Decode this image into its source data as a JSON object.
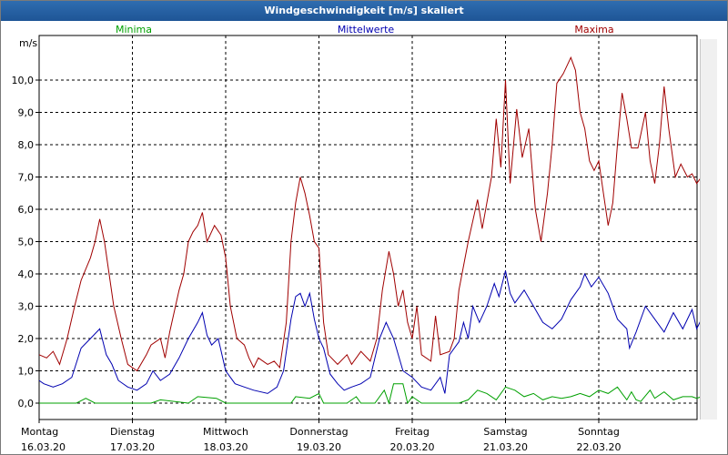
{
  "window": {
    "title": "Windgeschwindigkeit [m/s] skaliert"
  },
  "colors": {
    "minima": "#00a000",
    "mittelwerte": "#0000b0",
    "maxima": "#a00000",
    "grid": "#000000",
    "titlebar": "#2a63a6"
  },
  "chart_data": {
    "type": "line",
    "title": "Windgeschwindigkeit [m/s] skaliert",
    "ylabel": "m/s",
    "xlabel": "",
    "ylim": [
      -0.3,
      11.2
    ],
    "yticks": [
      "0,0",
      "1,0",
      "2,0",
      "3,0",
      "4,0",
      "5,0",
      "6,0",
      "7,0",
      "8,0",
      "9,0",
      "10,0"
    ],
    "xticks": [
      {
        "day": "Montag",
        "date": "16.03.20"
      },
      {
        "day": "Dienstag",
        "date": "17.03.20"
      },
      {
        "day": "Mittwoch",
        "date": "18.03.20"
      },
      {
        "day": "Donnerstag",
        "date": "19.03.20"
      },
      {
        "day": "Freitag",
        "date": "20.03.20"
      },
      {
        "day": "Samstag",
        "date": "21.03.20"
      },
      {
        "day": "Sonntag",
        "date": "22.03.20"
      }
    ],
    "xrange_days": [
      0,
      7.1
    ],
    "grid": true,
    "legend": "top",
    "series": [
      {
        "name": "Minima",
        "color": "#00a000",
        "points": [
          [
            0,
            0
          ],
          [
            0.4,
            0
          ],
          [
            0.5,
            0.15
          ],
          [
            0.6,
            0
          ],
          [
            1.2,
            0
          ],
          [
            1.3,
            0.1
          ],
          [
            1.6,
            0
          ],
          [
            1.7,
            0.2
          ],
          [
            1.9,
            0.15
          ],
          [
            2.0,
            0
          ],
          [
            2.7,
            0
          ],
          [
            2.75,
            0.2
          ],
          [
            2.9,
            0.15
          ],
          [
            3.0,
            0.3
          ],
          [
            3.05,
            0
          ],
          [
            3.3,
            0
          ],
          [
            3.4,
            0.2
          ],
          [
            3.45,
            0
          ],
          [
            3.6,
            0
          ],
          [
            3.7,
            0.4
          ],
          [
            3.75,
            0
          ],
          [
            3.8,
            0.6
          ],
          [
            3.9,
            0.6
          ],
          [
            3.95,
            0
          ],
          [
            4.0,
            0.2
          ],
          [
            4.1,
            0
          ],
          [
            4.5,
            0
          ],
          [
            4.6,
            0.1
          ],
          [
            4.7,
            0.4
          ],
          [
            4.8,
            0.3
          ],
          [
            4.9,
            0.1
          ],
          [
            5.0,
            0.5
          ],
          [
            5.1,
            0.4
          ],
          [
            5.2,
            0.2
          ],
          [
            5.3,
            0.3
          ],
          [
            5.4,
            0.1
          ],
          [
            5.5,
            0.2
          ],
          [
            5.6,
            0.15
          ],
          [
            5.7,
            0.2
          ],
          [
            5.8,
            0.3
          ],
          [
            5.9,
            0.2
          ],
          [
            6.0,
            0.4
          ],
          [
            6.1,
            0.3
          ],
          [
            6.2,
            0.5
          ],
          [
            6.25,
            0.3
          ],
          [
            6.3,
            0.1
          ],
          [
            6.35,
            0.35
          ],
          [
            6.4,
            0.1
          ],
          [
            6.45,
            0.05
          ],
          [
            6.55,
            0.4
          ],
          [
            6.6,
            0.15
          ],
          [
            6.7,
            0.35
          ],
          [
            6.8,
            0.1
          ],
          [
            6.9,
            0.2
          ],
          [
            7.0,
            0.2
          ],
          [
            7.05,
            0.15
          ],
          [
            7.1,
            0.2
          ]
        ]
      },
      {
        "name": "Mittelwerte",
        "color": "#0000b0",
        "points": [
          [
            0,
            0.7
          ],
          [
            0.05,
            0.6
          ],
          [
            0.15,
            0.5
          ],
          [
            0.25,
            0.6
          ],
          [
            0.35,
            0.8
          ],
          [
            0.45,
            1.7
          ],
          [
            0.55,
            2.0
          ],
          [
            0.65,
            2.3
          ],
          [
            0.72,
            1.5
          ],
          [
            0.78,
            1.2
          ],
          [
            0.85,
            0.7
          ],
          [
            0.95,
            0.5
          ],
          [
            1.05,
            0.4
          ],
          [
            1.15,
            0.6
          ],
          [
            1.22,
            1.0
          ],
          [
            1.3,
            0.7
          ],
          [
            1.4,
            0.9
          ],
          [
            1.5,
            1.4
          ],
          [
            1.6,
            2.0
          ],
          [
            1.7,
            2.5
          ],
          [
            1.75,
            2.8
          ],
          [
            1.8,
            2.1
          ],
          [
            1.85,
            1.8
          ],
          [
            1.92,
            2.0
          ],
          [
            2.0,
            1.0
          ],
          [
            2.1,
            0.6
          ],
          [
            2.2,
            0.5
          ],
          [
            2.3,
            0.4
          ],
          [
            2.45,
            0.3
          ],
          [
            2.55,
            0.5
          ],
          [
            2.62,
            1.0
          ],
          [
            2.7,
            2.6
          ],
          [
            2.75,
            3.3
          ],
          [
            2.8,
            3.4
          ],
          [
            2.85,
            3.0
          ],
          [
            2.9,
            3.4
          ],
          [
            2.95,
            2.6
          ],
          [
            3.0,
            2.0
          ],
          [
            3.05,
            1.7
          ],
          [
            3.12,
            0.9
          ],
          [
            3.2,
            0.6
          ],
          [
            3.27,
            0.4
          ],
          [
            3.35,
            0.5
          ],
          [
            3.45,
            0.6
          ],
          [
            3.55,
            0.8
          ],
          [
            3.65,
            2.0
          ],
          [
            3.72,
            2.5
          ],
          [
            3.8,
            2.0
          ],
          [
            3.9,
            1.0
          ],
          [
            4.0,
            0.8
          ],
          [
            4.1,
            0.5
          ],
          [
            4.2,
            0.4
          ],
          [
            4.3,
            0.8
          ],
          [
            4.35,
            0.3
          ],
          [
            4.4,
            1.5
          ],
          [
            4.5,
            1.9
          ],
          [
            4.55,
            2.5
          ],
          [
            4.6,
            2.0
          ],
          [
            4.65,
            3.0
          ],
          [
            4.72,
            2.5
          ],
          [
            4.8,
            3.0
          ],
          [
            4.88,
            3.7
          ],
          [
            4.93,
            3.3
          ],
          [
            5.0,
            4.1
          ],
          [
            5.05,
            3.4
          ],
          [
            5.1,
            3.1
          ],
          [
            5.2,
            3.5
          ],
          [
            5.3,
            3.0
          ],
          [
            5.4,
            2.5
          ],
          [
            5.5,
            2.3
          ],
          [
            5.6,
            2.6
          ],
          [
            5.7,
            3.2
          ],
          [
            5.8,
            3.6
          ],
          [
            5.85,
            4.0
          ],
          [
            5.92,
            3.6
          ],
          [
            6.0,
            3.9
          ],
          [
            6.1,
            3.4
          ],
          [
            6.2,
            2.6
          ],
          [
            6.3,
            2.3
          ],
          [
            6.33,
            1.7
          ],
          [
            6.4,
            2.2
          ],
          [
            6.5,
            3.0
          ],
          [
            6.6,
            2.6
          ],
          [
            6.7,
            2.2
          ],
          [
            6.8,
            2.8
          ],
          [
            6.9,
            2.3
          ],
          [
            7.0,
            2.9
          ],
          [
            7.05,
            2.3
          ],
          [
            7.1,
            2.6
          ]
        ]
      },
      {
        "name": "Maxima",
        "color": "#a00000",
        "points": [
          [
            0,
            1.5
          ],
          [
            0.08,
            1.4
          ],
          [
            0.15,
            1.6
          ],
          [
            0.22,
            1.2
          ],
          [
            0.3,
            2.0
          ],
          [
            0.38,
            3.0
          ],
          [
            0.45,
            3.8
          ],
          [
            0.55,
            4.5
          ],
          [
            0.6,
            5.0
          ],
          [
            0.65,
            5.7
          ],
          [
            0.7,
            5.0
          ],
          [
            0.75,
            4.0
          ],
          [
            0.8,
            3.0
          ],
          [
            0.88,
            2.0
          ],
          [
            0.95,
            1.2
          ],
          [
            1.05,
            1.0
          ],
          [
            1.15,
            1.5
          ],
          [
            1.2,
            1.8
          ],
          [
            1.3,
            2.0
          ],
          [
            1.35,
            1.4
          ],
          [
            1.4,
            2.2
          ],
          [
            1.5,
            3.5
          ],
          [
            1.55,
            4.0
          ],
          [
            1.6,
            5.0
          ],
          [
            1.65,
            5.3
          ],
          [
            1.7,
            5.5
          ],
          [
            1.75,
            5.9
          ],
          [
            1.8,
            5.0
          ],
          [
            1.88,
            5.5
          ],
          [
            1.95,
            5.2
          ],
          [
            2.0,
            4.5
          ],
          [
            2.05,
            3.0
          ],
          [
            2.12,
            2.0
          ],
          [
            2.2,
            1.8
          ],
          [
            2.25,
            1.4
          ],
          [
            2.3,
            1.1
          ],
          [
            2.35,
            1.4
          ],
          [
            2.45,
            1.2
          ],
          [
            2.52,
            1.3
          ],
          [
            2.58,
            1.1
          ],
          [
            2.65,
            2.5
          ],
          [
            2.7,
            5.0
          ],
          [
            2.75,
            6.2
          ],
          [
            2.8,
            7.0
          ],
          [
            2.85,
            6.5
          ],
          [
            2.9,
            5.8
          ],
          [
            2.95,
            5.0
          ],
          [
            3.0,
            4.8
          ],
          [
            3.05,
            2.5
          ],
          [
            3.1,
            1.5
          ],
          [
            3.2,
            1.2
          ],
          [
            3.3,
            1.5
          ],
          [
            3.35,
            1.2
          ],
          [
            3.45,
            1.6
          ],
          [
            3.55,
            1.3
          ],
          [
            3.62,
            2.0
          ],
          [
            3.68,
            3.5
          ],
          [
            3.75,
            4.7
          ],
          [
            3.8,
            4.0
          ],
          [
            3.85,
            3.0
          ],
          [
            3.9,
            3.5
          ],
          [
            3.95,
            2.5
          ],
          [
            4.0,
            2.0
          ],
          [
            4.05,
            3.0
          ],
          [
            4.1,
            1.5
          ],
          [
            4.2,
            1.3
          ],
          [
            4.25,
            2.7
          ],
          [
            4.3,
            1.5
          ],
          [
            4.4,
            1.6
          ],
          [
            4.45,
            2.0
          ],
          [
            4.5,
            3.5
          ],
          [
            4.6,
            5.0
          ],
          [
            4.7,
            6.3
          ],
          [
            4.75,
            5.4
          ],
          [
            4.85,
            7.0
          ],
          [
            4.9,
            8.8
          ],
          [
            4.95,
            7.3
          ],
          [
            5.0,
            10.0
          ],
          [
            5.05,
            6.8
          ],
          [
            5.12,
            9.1
          ],
          [
            5.18,
            7.6
          ],
          [
            5.25,
            8.5
          ],
          [
            5.32,
            6.0
          ],
          [
            5.38,
            5.0
          ],
          [
            5.45,
            6.5
          ],
          [
            5.5,
            8.0
          ],
          [
            5.55,
            9.9
          ],
          [
            5.62,
            10.2
          ],
          [
            5.7,
            10.7
          ],
          [
            5.75,
            10.3
          ],
          [
            5.8,
            9.0
          ],
          [
            5.85,
            8.5
          ],
          [
            5.9,
            7.5
          ],
          [
            5.95,
            7.2
          ],
          [
            6.0,
            7.5
          ],
          [
            6.05,
            6.5
          ],
          [
            6.1,
            5.5
          ],
          [
            6.15,
            6.2
          ],
          [
            6.2,
            8.0
          ],
          [
            6.25,
            9.6
          ],
          [
            6.3,
            8.8
          ],
          [
            6.35,
            7.9
          ],
          [
            6.42,
            7.9
          ],
          [
            6.5,
            9.0
          ],
          [
            6.55,
            7.5
          ],
          [
            6.6,
            6.8
          ],
          [
            6.65,
            8.0
          ],
          [
            6.7,
            9.8
          ],
          [
            6.75,
            8.5
          ],
          [
            6.82,
            7.0
          ],
          [
            6.88,
            7.4
          ],
          [
            6.95,
            7.0
          ],
          [
            7.0,
            7.1
          ],
          [
            7.05,
            6.8
          ],
          [
            7.1,
            7.0
          ]
        ]
      }
    ]
  }
}
